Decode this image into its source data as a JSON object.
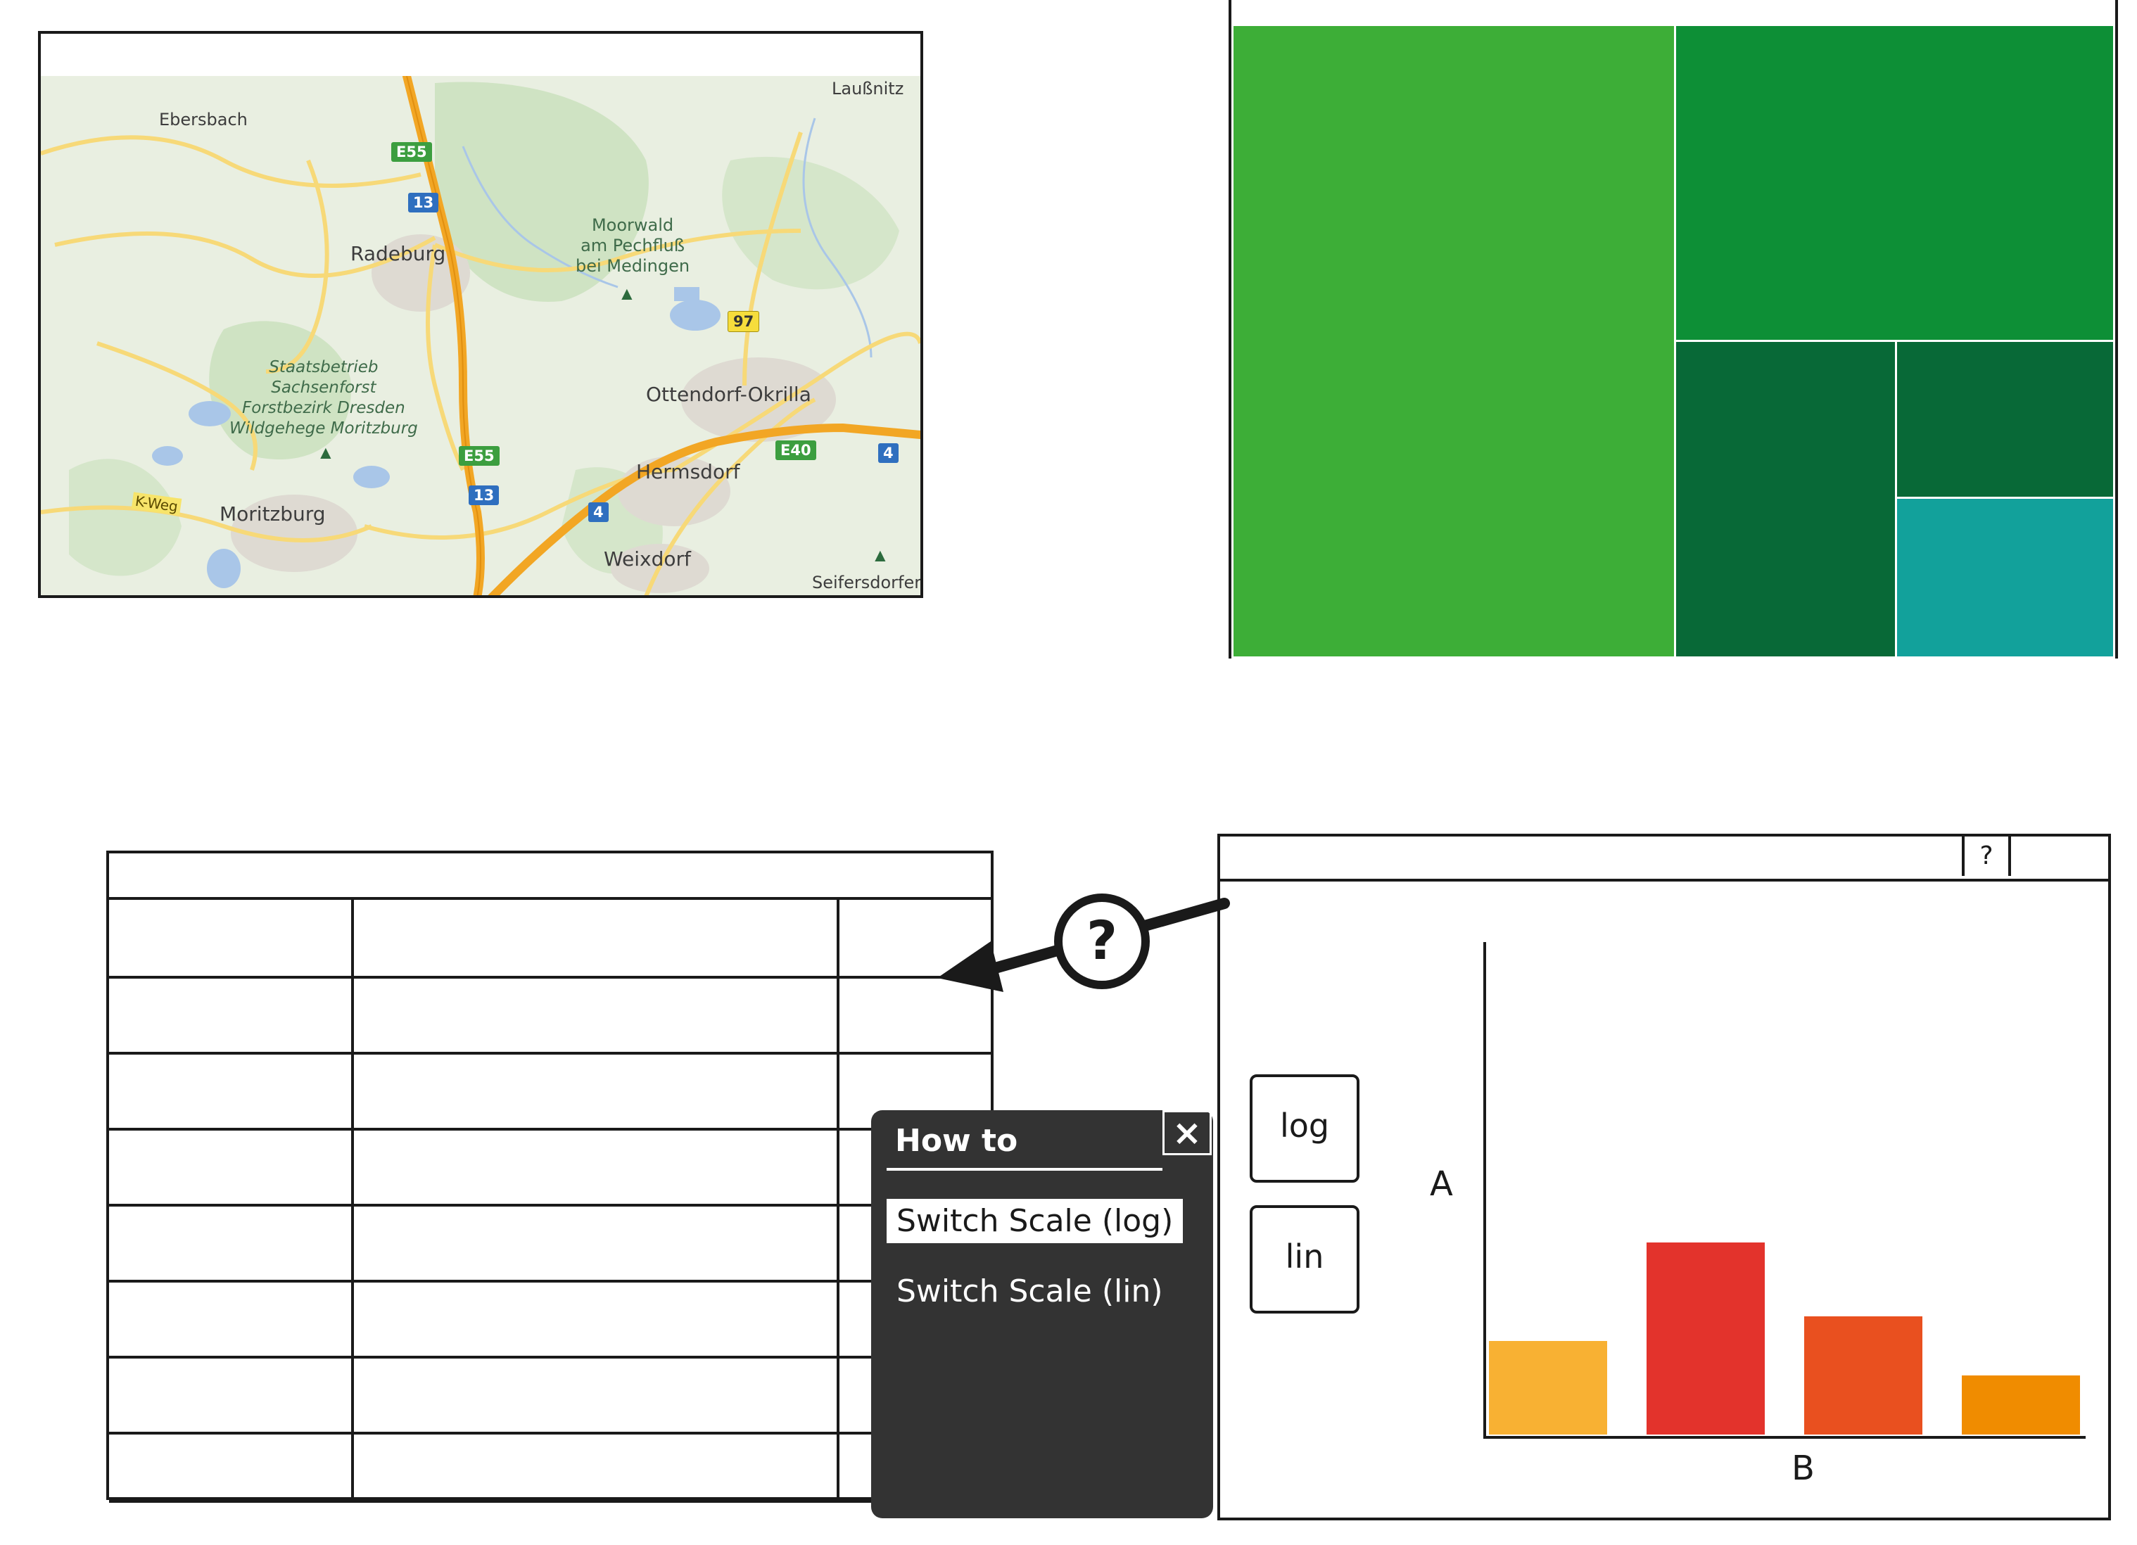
{
  "map": {
    "towns": {
      "ebersbach": "Ebersbach",
      "radeburg": "Radeburg",
      "lausnitz": "Laußnitz",
      "moorwald": "Moorwald\nam Pechfluß\nbei Medingen",
      "ottendorf": "Ottendorf-Okrilla",
      "staatsbetrieb": "Staatsbetrieb\nSachsenforst\nForstbezirk Dresden\nWildgehege Moritzburg",
      "moritzburg": "Moritzburg",
      "hermsdorf": "Hermsdorf",
      "weixdorf": "Weixdorf",
      "seifersdorf": "Seifersdorfer",
      "kweg": "K-Weg"
    },
    "shields": {
      "e55_top": "E55",
      "a13_top": "13",
      "r97": "97",
      "e55_bottom": "E55",
      "a13_bottom": "13",
      "a4_mid": "4",
      "e40": "E40",
      "a4_right": "4"
    },
    "colors": {
      "land": "#e9efe1",
      "forest": "#cfe3c3",
      "water": "#a9c6e8",
      "motorway": "#f2a624",
      "road": "#f7d978"
    }
  },
  "treemap": {
    "colors": [
      "#3dae37",
      "#0d8f36",
      "#086937",
      "#086937",
      "#12a19b"
    ]
  },
  "howto": {
    "title": "How to",
    "close_icon": "×",
    "items": [
      "Switch Scale (log)",
      "Switch Scale (lin)"
    ]
  },
  "chart_window": {
    "help_button": "?",
    "buttons": {
      "log": "log",
      "lin": "lin"
    }
  },
  "help_marker": "?",
  "chart_data": {
    "type": "bar",
    "xlabel": "B",
    "ylabel": "A",
    "categories": [
      "",
      "",
      "",
      ""
    ],
    "values": [
      19,
      39,
      24,
      12
    ],
    "ylim": [
      0,
      100
    ],
    "colors": [
      "#f8b133",
      "#e3332c",
      "#e9501f",
      "#f08c00"
    ],
    "grid": false
  }
}
